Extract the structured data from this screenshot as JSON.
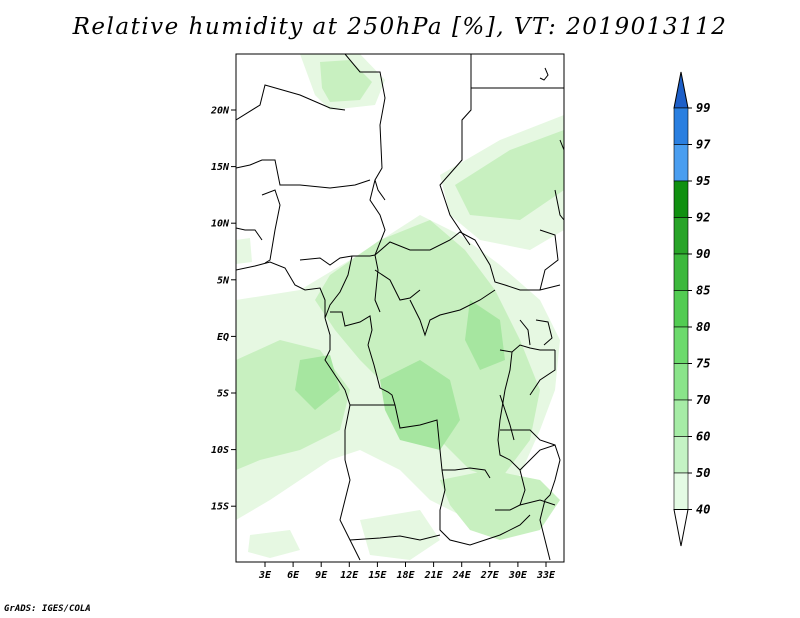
{
  "title": "Relative humidity at 250hPa [%], VT: 2019013112",
  "credit": "GrADS: IGES/COLA",
  "map": {
    "lon_labels": [
      "3E",
      "6E",
      "9E",
      "12E",
      "15E",
      "18E",
      "21E",
      "24E",
      "27E",
      "30E",
      "33E"
    ],
    "lat_labels": [
      "20N",
      "15N",
      "10N",
      "5N",
      "EQ",
      "5S",
      "10S",
      "15S"
    ],
    "field_color_main": "#c8f0c0",
    "field_color_light": "#e6f8e2",
    "field_color_mid": "#a6e6a0"
  },
  "colorbar": {
    "labels": [
      "99",
      "97",
      "95",
      "92",
      "90",
      "85",
      "80",
      "75",
      "70",
      "60",
      "50",
      "40"
    ],
    "colors": [
      "#1d5fc8",
      "#2a7fe0",
      "#4a9ef0",
      "#109010",
      "#28a428",
      "#3cb83c",
      "#52cc52",
      "#6cda6c",
      "#8ae48a",
      "#a6eca6",
      "#c4f3c4",
      "#e4fbe4",
      "#ffffff"
    ]
  }
}
